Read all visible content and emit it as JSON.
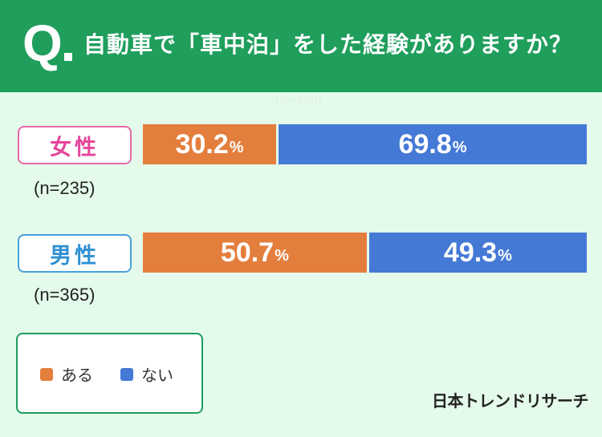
{
  "question": {
    "mark": "Q",
    "text": "自動車で「車中泊」をした経験がありますか？"
  },
  "total_n": "(n=600)",
  "colors": {
    "yes": "#e47e3d",
    "no": "#4579d6",
    "header": "#1f9e5c",
    "female": "#e5469a",
    "male": "#2f90d2"
  },
  "chart_data": {
    "type": "bar",
    "orientation": "horizontal-stacked-100",
    "title": "自動車で「車中泊」をした経験がありますか？",
    "categories": [
      "女性",
      "男性"
    ],
    "category_n": [
      "(n=235)",
      "(n=365)"
    ],
    "series": [
      {
        "name": "ある",
        "values": [
          30.2,
          50.7
        ]
      },
      {
        "name": "ない",
        "values": [
          69.8,
          49.3
        ]
      }
    ],
    "unit": "%",
    "xlim": [
      0,
      100
    ],
    "legend": "bottom-left"
  },
  "groups": [
    {
      "label": "女性",
      "n": "(n=235)",
      "yes": {
        "value": "30.2",
        "unit": "%"
      },
      "no": {
        "value": "69.8",
        "unit": "%"
      }
    },
    {
      "label": "男性",
      "n": "(n=365)",
      "yes": {
        "value": "50.7",
        "unit": "%"
      },
      "no": {
        "value": "49.3",
        "unit": "%"
      }
    }
  ],
  "legend": {
    "yes": "ある",
    "no": "ない"
  },
  "logo": "日本トレンドリサーチ"
}
